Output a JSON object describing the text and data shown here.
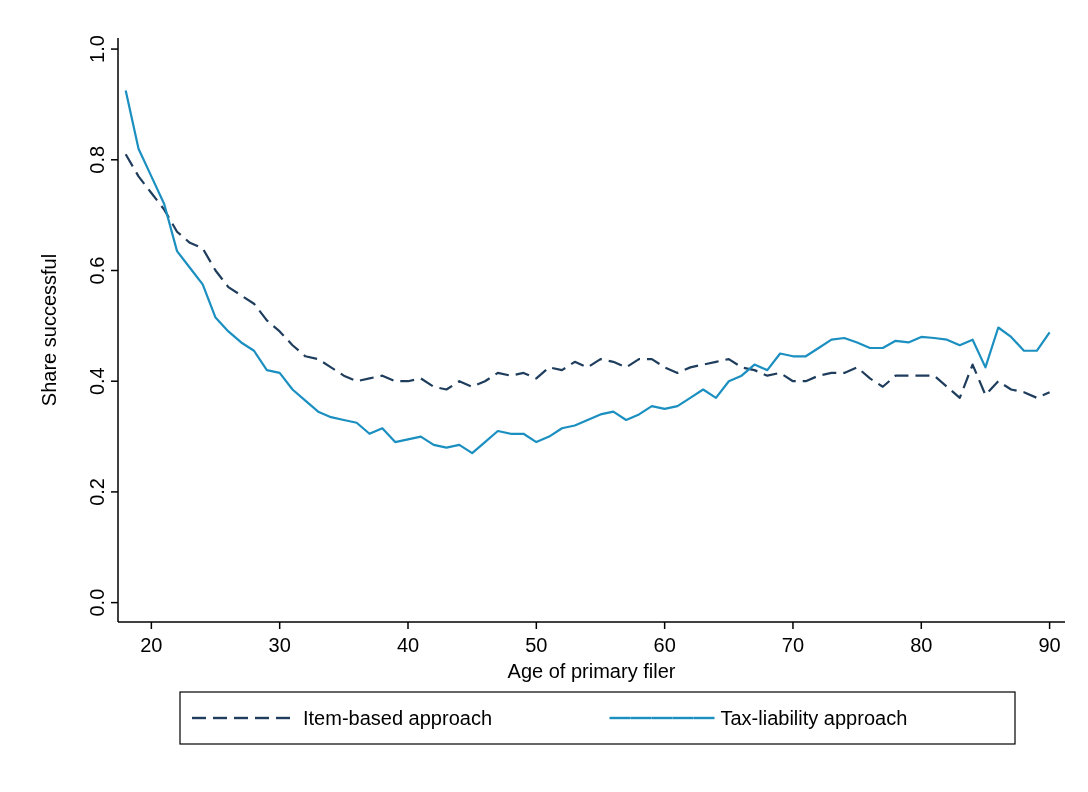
{
  "chart_data": {
    "type": "line",
    "xlabel": "Age of primary filer",
    "ylabel": "Share successful",
    "x": [
      18,
      19,
      20,
      21,
      22,
      23,
      24,
      25,
      26,
      27,
      28,
      29,
      30,
      31,
      32,
      33,
      34,
      35,
      36,
      37,
      38,
      39,
      40,
      41,
      42,
      43,
      44,
      45,
      46,
      47,
      48,
      49,
      50,
      51,
      52,
      53,
      54,
      55,
      56,
      57,
      58,
      59,
      60,
      61,
      62,
      63,
      64,
      65,
      66,
      67,
      68,
      69,
      70,
      71,
      72,
      73,
      74,
      75,
      76,
      77,
      78,
      79,
      80,
      81,
      82,
      83,
      84,
      85,
      86,
      87,
      88,
      89,
      90
    ],
    "series": [
      {
        "name": "Item-based approach",
        "color": "#1f3d5c",
        "line_style": "dashed",
        "values": [
          0.81,
          0.77,
          0.74,
          0.71,
          0.67,
          0.65,
          0.64,
          0.6,
          0.57,
          0.555,
          0.54,
          0.51,
          0.49,
          0.465,
          0.445,
          0.44,
          0.425,
          0.41,
          0.4,
          0.405,
          0.41,
          0.4,
          0.4,
          0.405,
          0.39,
          0.385,
          0.4,
          0.39,
          0.4,
          0.415,
          0.41,
          0.415,
          0.405,
          0.425,
          0.42,
          0.435,
          0.425,
          0.44,
          0.435,
          0.425,
          0.44,
          0.44,
          0.425,
          0.415,
          0.425,
          0.43,
          0.435,
          0.44,
          0.425,
          0.42,
          0.41,
          0.415,
          0.4,
          0.4,
          0.41,
          0.415,
          0.415,
          0.425,
          0.405,
          0.39,
          0.41,
          0.41,
          0.41,
          0.41,
          0.39,
          0.37,
          0.43,
          0.375,
          0.4,
          0.385,
          0.38,
          0.37,
          0.38
        ]
      },
      {
        "name": "Tax-liability approach",
        "color": "#1a8fc0",
        "line_style": "solid",
        "values": [
          0.925,
          0.82,
          0.77,
          0.72,
          0.635,
          0.605,
          0.575,
          0.515,
          0.49,
          0.47,
          0.455,
          0.42,
          0.415,
          0.385,
          0.365,
          0.345,
          0.335,
          0.33,
          0.325,
          0.305,
          0.315,
          0.29,
          0.295,
          0.3,
          0.285,
          0.28,
          0.285,
          0.27,
          0.29,
          0.31,
          0.305,
          0.305,
          0.29,
          0.3,
          0.315,
          0.32,
          0.33,
          0.34,
          0.345,
          0.33,
          0.34,
          0.355,
          0.35,
          0.355,
          0.37,
          0.385,
          0.37,
          0.4,
          0.41,
          0.43,
          0.42,
          0.45,
          0.445,
          0.445,
          0.46,
          0.475,
          0.478,
          0.47,
          0.46,
          0.46,
          0.473,
          0.47,
          0.48,
          0.478,
          0.475,
          0.465,
          0.475,
          0.425,
          0.497,
          0.48,
          0.455,
          0.455,
          0.488
        ]
      }
    ],
    "xlim": [
      17.4,
      91.2
    ],
    "xticks": [
      20,
      30,
      40,
      50,
      60,
      70,
      80,
      90
    ],
    "ylim": [
      -0.035,
      1.02
    ],
    "yticks": [
      {
        "value": 0,
        "label": "0.0"
      },
      {
        "value": 0.2,
        "label": "0.2"
      },
      {
        "value": 0.4,
        "label": "0.4"
      },
      {
        "value": 0.6,
        "label": "0.6"
      },
      {
        "value": 0.8,
        "label": "0.8"
      },
      {
        "value": 1,
        "label": "1.0"
      }
    ],
    "grid": false,
    "legend": "bottom",
    "marker": "none"
  }
}
